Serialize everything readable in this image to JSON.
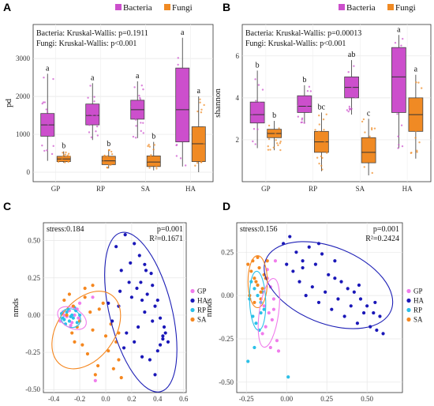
{
  "colors": {
    "bacteria": "#CC4FCC",
    "fungi": "#F08A24",
    "GP": "#F07CEC",
    "HA": "#1A17B8",
    "RP": "#2BC0E8",
    "SA": "#F5871F",
    "ellipse_HA": "#1E20B6"
  },
  "chart_data": [
    {
      "panel": "A",
      "type": "box",
      "categories": [
        "GP",
        "RP",
        "SA",
        "HA"
      ],
      "ylabel": "pd",
      "yticks": [
        0,
        1000,
        2000,
        3000
      ],
      "ylim": [
        -250,
        3900
      ],
      "legend": [
        "Bacteria",
        "Fungi"
      ],
      "legend_position": "top-right",
      "stats_lines": [
        "Bacteria: Kruskal-Wallis: p=0.1911",
        "Fungi: Kruskal-Wallis: p<0.001"
      ],
      "grid": true,
      "series": [
        {
          "name": "Bacteria",
          "boxes": [
            {
              "whisker_low": 300,
              "q1": 950,
              "median": 1250,
              "q3": 1550,
              "whisker_high": 2600,
              "letter": "a"
            },
            {
              "whisker_low": 850,
              "q1": 1250,
              "median": 1500,
              "q3": 1800,
              "whisker_high": 2350,
              "letter": "a"
            },
            {
              "whisker_low": 900,
              "q1": 1400,
              "median": 1650,
              "q3": 1900,
              "whisker_high": 2400,
              "letter": "a"
            },
            {
              "whisker_low": 150,
              "q1": 800,
              "median": 1650,
              "q3": 2750,
              "whisker_high": 3550,
              "letter": "a"
            }
          ]
        },
        {
          "name": "Fungi",
          "boxes": [
            {
              "whisker_low": 250,
              "q1": 280,
              "median": 350,
              "q3": 420,
              "whisker_high": 550,
              "letter": "b"
            },
            {
              "whisker_low": 100,
              "q1": 200,
              "median": 300,
              "q3": 420,
              "whisker_high": 600,
              "letter": "b"
            },
            {
              "whisker_low": 50,
              "q1": 150,
              "median": 270,
              "q3": 430,
              "whisker_high": 800,
              "letter": "b"
            },
            {
              "whisker_low": 0,
              "q1": 280,
              "median": 750,
              "q3": 1200,
              "whisker_high": 2000,
              "letter": "a"
            }
          ]
        }
      ]
    },
    {
      "panel": "B",
      "type": "box",
      "categories": [
        "GP",
        "RP",
        "SA",
        "HA"
      ],
      "ylabel": "shannon",
      "yticks": [
        2,
        4,
        6
      ],
      "ylim": [
        0,
        7.5
      ],
      "legend": [
        "Bacteria",
        "Fungi"
      ],
      "legend_position": "top-right",
      "stats_lines": [
        "Bacteria: Kruskal-Wallis: p=0.00013",
        "Fungi: Kruskal-Wallis: p<0.001"
      ],
      "grid": true,
      "series": [
        {
          "name": "Bacteria",
          "boxes": [
            {
              "whisker_low": 1.6,
              "q1": 2.8,
              "median": 3.2,
              "q3": 3.8,
              "whisker_high": 5.3,
              "letter": "b"
            },
            {
              "whisker_low": 2.8,
              "q1": 3.3,
              "median": 3.6,
              "q3": 4.1,
              "whisker_high": 4.6,
              "letter": "b"
            },
            {
              "whisker_low": 3.2,
              "q1": 4.0,
              "median": 4.5,
              "q3": 5.0,
              "whisker_high": 5.8,
              "letter": "ab"
            },
            {
              "whisker_low": 1.6,
              "q1": 3.3,
              "median": 5.0,
              "q3": 6.4,
              "whisker_high": 7.0,
              "letter": "a"
            }
          ]
        },
        {
          "name": "Fungi",
          "boxes": [
            {
              "whisker_low": 1.5,
              "q1": 2.1,
              "median": 2.3,
              "q3": 2.5,
              "whisker_high": 2.9,
              "letter": "b"
            },
            {
              "whisker_low": 0.5,
              "q1": 1.4,
              "median": 1.9,
              "q3": 2.4,
              "whisker_high": 3.3,
              "letter": "bc"
            },
            {
              "whisker_low": 0.3,
              "q1": 0.9,
              "median": 1.4,
              "q3": 2.1,
              "whisker_high": 3.0,
              "letter": "c"
            },
            {
              "whisker_low": 1.1,
              "q1": 2.4,
              "median": 3.2,
              "q3": 4.0,
              "whisker_high": 5.1,
              "letter": "a"
            }
          ]
        }
      ]
    },
    {
      "panel": "C",
      "type": "scatter",
      "ylabel": "nmds",
      "xticks": [
        -0.4,
        -0.2,
        0.0,
        0.2,
        0.4,
        0.6
      ],
      "yticks": [
        -0.5,
        -0.25,
        0.0,
        0.25,
        0.5
      ],
      "xlim": [
        -0.48,
        0.62
      ],
      "ylim": [
        -0.52,
        0.62
      ],
      "annotations": {
        "stress": "stress:0.184",
        "p": "p=0.001",
        "r2": "R²=0.1671"
      },
      "legend": [
        "GP",
        "HA",
        "RP",
        "SA"
      ],
      "legend_position": "right",
      "grid": true,
      "ellipses": [
        {
          "group": "HA",
          "cx": 0.27,
          "cy": 0.02,
          "rx": 0.24,
          "ry": 0.55,
          "angle": -14
        },
        {
          "group": "SA",
          "cx": -0.15,
          "cy": -0.1,
          "rx": 0.22,
          "ry": 0.29,
          "angle": 36
        },
        {
          "group": "RP",
          "cx": -0.27,
          "cy": -0.02,
          "rx": 0.08,
          "ry": 0.06,
          "angle": 35
        },
        {
          "group": "GP",
          "cx": -0.26,
          "cy": -0.02,
          "rx": 0.12,
          "ry": 0.065,
          "angle": 30
        }
      ],
      "series": [
        {
          "name": "GP",
          "x": [
            -0.33,
            -0.3,
            -0.28,
            -0.26,
            -0.24,
            -0.22,
            -0.25,
            -0.21,
            -0.27,
            -0.1,
            -0.08,
            -0.32,
            -0.2,
            -0.35
          ],
          "y": [
            0.02,
            -0.01,
            0.03,
            -0.05,
            0.0,
            0.04,
            0.06,
            -0.02,
            -0.07,
            0.12,
            -0.44,
            0.0,
            0.08,
            -0.04
          ]
        },
        {
          "name": "HA",
          "x": [
            0.08,
            0.15,
            0.22,
            0.12,
            0.26,
            0.3,
            0.35,
            0.18,
            0.11,
            0.2,
            0.24,
            0.28,
            0.32,
            0.38,
            0.4,
            0.42,
            0.45,
            0.44,
            0.36,
            0.3,
            0.25,
            0.16,
            0.14,
            0.22,
            0.28,
            0.05,
            0.1,
            0.34,
            0.38,
            0.46,
            0.42,
            0.4,
            0.31,
            0.27,
            0.19,
            0.36,
            0.44,
            0.48,
            0.02
          ],
          "y": [
            0.46,
            0.54,
            0.48,
            0.3,
            0.4,
            0.34,
            0.28,
            0.22,
            0.16,
            0.12,
            0.18,
            0.1,
            0.14,
            0.06,
            0.1,
            -0.02,
            -0.08,
            -0.14,
            -0.04,
            0.02,
            -0.08,
            -0.12,
            -0.22,
            -0.18,
            -0.28,
            -0.04,
            0.06,
            -0.3,
            -0.4,
            -0.12,
            -0.2,
            -0.24,
            0.3,
            0.22,
            0.35,
            0.2,
            -0.16,
            -0.18,
            0.08
          ]
        },
        {
          "name": "RP",
          "x": [
            -0.34,
            -0.32,
            -0.3,
            -0.28,
            -0.26,
            -0.25,
            -0.23,
            -0.22,
            -0.29,
            -0.31,
            -0.27,
            -0.24,
            -0.33,
            -0.2
          ],
          "y": [
            0.01,
            -0.03,
            0.02,
            -0.04,
            0.0,
            -0.02,
            0.03,
            -0.05,
            0.04,
            -0.06,
            -0.01,
            0.05,
            -0.02,
            0.0
          ]
        },
        {
          "name": "SA",
          "x": [
            -0.32,
            -0.28,
            -0.25,
            -0.2,
            -0.16,
            -0.12,
            -0.1,
            -0.05,
            0.0,
            0.04,
            0.08,
            0.1,
            -0.18,
            -0.22,
            -0.14,
            -0.06,
            0.02,
            -0.26,
            -0.3,
            -0.08,
            0.06,
            0.1,
            -0.16,
            -0.02,
            0.12,
            -0.1,
            -0.24
          ],
          "y": [
            0.1,
            0.14,
            0.06,
            -0.04,
            0.12,
            0.02,
            -0.1,
            0.04,
            -0.14,
            -0.06,
            -0.18,
            -0.3,
            -0.2,
            -0.08,
            -0.26,
            -0.34,
            -0.24,
            -0.12,
            0.0,
            -0.4,
            -0.36,
            -0.12,
            0.18,
            0.08,
            -0.42,
            0.2,
            -0.18
          ]
        }
      ]
    },
    {
      "panel": "D",
      "type": "scatter",
      "ylabel": "nmds",
      "xticks": [
        -0.25,
        0.0,
        0.25,
        0.5
      ],
      "yticks": [
        -0.5,
        -0.25,
        0.0,
        0.25
      ],
      "xlim": [
        -0.31,
        0.72
      ],
      "ylim": [
        -0.56,
        0.42
      ],
      "annotations": {
        "stress": "stress:0.156",
        "p": "p=0.001",
        "r2": "R²=0.2424"
      },
      "legend": [
        "GP",
        "HA",
        "RP",
        "SA"
      ],
      "legend_position": "right",
      "grid": true,
      "ellipses": [
        {
          "group": "HA",
          "cx": 0.26,
          "cy": 0.06,
          "rx": 0.42,
          "ry": 0.22,
          "angle": 22
        },
        {
          "group": "SA",
          "cx": -0.18,
          "cy": 0.08,
          "rx": 0.06,
          "ry": 0.15,
          "angle": 0
        },
        {
          "group": "RP",
          "cx": -0.18,
          "cy": -0.03,
          "rx": 0.05,
          "ry": 0.17,
          "angle": -2
        },
        {
          "group": "GP",
          "cx": -0.11,
          "cy": -0.1,
          "rx": 0.06,
          "ry": 0.2,
          "angle": 8
        }
      ],
      "series": [
        {
          "name": "GP",
          "x": [
            -0.12,
            -0.1,
            -0.08,
            -0.14,
            -0.11,
            -0.09,
            -0.13,
            -0.15,
            -0.06,
            -0.1,
            -0.12,
            -0.07,
            -0.05,
            -0.08
          ],
          "y": [
            0.1,
            0.05,
            -0.02,
            -0.06,
            -0.1,
            -0.14,
            -0.18,
            -0.22,
            -0.26,
            -0.3,
            0.15,
            0.2,
            -0.32,
            -0.08
          ]
        },
        {
          "name": "HA",
          "x": [
            -0.02,
            0.02,
            0.06,
            0.1,
            0.14,
            0.18,
            0.22,
            0.26,
            0.3,
            0.34,
            0.38,
            0.42,
            0.46,
            0.5,
            0.54,
            0.58,
            0.04,
            0.08,
            0.12,
            0.16,
            0.2,
            0.24,
            0.28,
            0.32,
            0.36,
            0.4,
            0.44,
            0.48,
            0.52,
            0.56,
            0.6,
            0.0,
            0.1,
            0.2,
            0.3,
            0.45,
            0.55
          ],
          "y": [
            0.3,
            0.34,
            0.25,
            0.2,
            0.28,
            0.18,
            0.24,
            0.12,
            0.1,
            0.08,
            0.04,
            0.02,
            -0.02,
            -0.06,
            -0.1,
            -0.12,
            0.14,
            0.08,
            0.0,
            0.05,
            -0.04,
            0.02,
            -0.08,
            -0.02,
            -0.12,
            -0.06,
            -0.16,
            -0.1,
            -0.18,
            -0.2,
            -0.22,
            0.18,
            0.16,
            0.3,
            0.2,
            0.06,
            -0.04
          ]
        },
        {
          "name": "RP",
          "x": [
            -0.22,
            -0.2,
            -0.18,
            -0.16,
            -0.14,
            -0.21,
            -0.19,
            -0.17,
            -0.15,
            -0.23,
            -0.18,
            -0.16,
            -0.2,
            -0.24,
            0.01
          ],
          "y": [
            0.08,
            0.04,
            0.0,
            -0.04,
            -0.08,
            -0.12,
            -0.16,
            -0.2,
            0.02,
            -0.02,
            0.06,
            -0.1,
            -0.3,
            -0.38,
            -0.47
          ]
        },
        {
          "name": "SA",
          "x": [
            -0.24,
            -0.22,
            -0.2,
            -0.18,
            -0.16,
            -0.14,
            -0.21,
            -0.19,
            -0.17,
            -0.15,
            -0.23,
            -0.13,
            -0.12,
            -0.2,
            -0.16,
            -0.18
          ],
          "y": [
            0.18,
            0.14,
            0.1,
            0.06,
            0.02,
            0.12,
            0.2,
            0.08,
            0.16,
            0.04,
            0.0,
            0.1,
            0.2,
            -0.04,
            -0.02,
            0.22
          ]
        }
      ]
    }
  ]
}
